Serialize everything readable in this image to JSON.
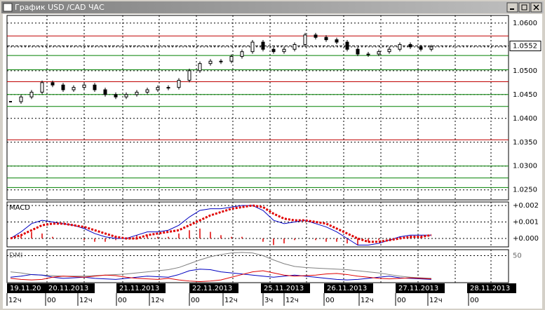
{
  "window": {
    "title": "График USD /CAD ЧАС"
  },
  "chart_data": [
    {
      "type": "candlestick",
      "values": [
        1.0435,
        1.0445,
        1.0455,
        1.0475,
        1.047,
        1.046,
        1.0465,
        1.047,
        1.046,
        1.045,
        1.0445,
        1.045,
        1.0455,
        1.046,
        1.0465,
        1.0465,
        1.048,
        1.05,
        1.0515,
        1.052,
        1.052,
        1.053,
        1.054,
        1.056,
        1.0545,
        1.054,
        1.0545,
        1.0555,
        1.0575,
        1.057,
        1.0565,
        1.056,
        1.0545,
        1.0535,
        1.0535,
        1.054,
        1.0545,
        1.0555,
        1.055,
        1.0545,
        1.055
      ],
      "color": "#000000",
      "current_price": 1.0552,
      "levels": [
        {
          "value": 1.0573,
          "color": "#c00000"
        },
        {
          "value": 1.0532,
          "color": "#008000"
        },
        {
          "value": 1.0502,
          "color": "#008000"
        },
        {
          "value": 1.0477,
          "color": "#c00000"
        },
        {
          "value": 1.045,
          "color": "#008000"
        },
        {
          "value": 1.0425,
          "color": "#008000"
        },
        {
          "value": 1.0355,
          "color": "#c00000"
        },
        {
          "value": 1.03,
          "color": "#008000"
        },
        {
          "value": 1.0275,
          "color": "#008000"
        },
        {
          "value": 1.0255,
          "color": "#008000"
        }
      ],
      "ylim": [
        1.0229,
        1.0616
      ],
      "yticks": [
        {
          "value": 1.06,
          "label": "1.0600"
        },
        {
          "value": 1.055,
          "label": "1.0550"
        },
        {
          "value": 1.05,
          "label": "1.0500"
        },
        {
          "value": 1.045,
          "label": "1.0450"
        },
        {
          "value": 1.04,
          "label": "1.0400"
        },
        {
          "value": 1.035,
          "label": "1.0350"
        },
        {
          "value": 1.03,
          "label": "1.0300"
        },
        {
          "value": 1.025,
          "label": "1.0250"
        }
      ],
      "grid": true
    },
    {
      "type": "line",
      "title": "MACD",
      "series": [
        {
          "color": "#0000c0",
          "values": [
            0,
            0.0004,
            0.0009,
            0.0011,
            0.001,
            0.0009,
            0.0008,
            0.0006,
            0.0003,
            0.0001,
            0,
            0,
            0.0002,
            0.0004,
            0.0004,
            0.0005,
            0.0008,
            0.0013,
            0.0017,
            0.0018,
            0.0018,
            0.0019,
            0.002,
            0.002,
            0.0017,
            0.0011,
            0.0009,
            0.001,
            0.0011,
            0.0009,
            0.0007,
            0.0004,
            0,
            -0.0004,
            -0.0004,
            -0.0003,
            -0.0001,
            0.0001,
            0.0002,
            0.0002,
            0.0002
          ]
        },
        {
          "color": "#e00000",
          "style": "dotted",
          "values": [
            0,
            0.0002,
            0.0005,
            0.0008,
            0.0009,
            0.0009,
            0.0008,
            0.0007,
            0.0005,
            0.0003,
            0.0001,
            0,
            0,
            0.0002,
            0.0003,
            0.0004,
            0.0005,
            0.0008,
            0.0011,
            0.0014,
            0.0016,
            0.0018,
            0.0019,
            0.002,
            0.0019,
            0.0015,
            0.0012,
            0.0011,
            0.0011,
            0.001,
            0.0009,
            0.0006,
            0.0003,
            0,
            -0.0002,
            -0.0002,
            -0.0001,
            0,
            0.0001,
            0.0001,
            0.0002
          ]
        }
      ],
      "histogram": {
        "color": "#e00000",
        "values": [
          0,
          0.0002,
          0.0004,
          0.0003,
          0.0001,
          0,
          0,
          -0.0001,
          -0.0002,
          -0.0002,
          -0.0001,
          0,
          0.0002,
          0.0002,
          0.0001,
          0.0001,
          0.0003,
          0.0005,
          0.0006,
          0.0004,
          0.0002,
          0.0001,
          0.0001,
          0,
          -0.0002,
          -0.0004,
          -0.0003,
          -0.0001,
          0,
          -0.0001,
          -0.0002,
          -0.0002,
          -0.0003,
          -0.0004,
          -0.0002,
          -0.0001,
          0,
          0.0001,
          0.0001,
          0.0001,
          0
        ]
      },
      "ylim": [
        -0.00051,
        0.00221
      ],
      "yticks": [
        {
          "value": 0.002,
          "label": "+0.002"
        },
        {
          "value": 0.001,
          "label": "+0.001"
        },
        {
          "value": 0,
          "label": "+0.000"
        }
      ]
    },
    {
      "type": "line",
      "title": "DMI",
      "series": [
        {
          "color": "#808080",
          "values": [
            20,
            18,
            15,
            14,
            13,
            12,
            12,
            12,
            13,
            14,
            15,
            16,
            18,
            20,
            22,
            24,
            28,
            35,
            42,
            48,
            52,
            55,
            56,
            55,
            50,
            42,
            35,
            30,
            28,
            27,
            26,
            25,
            24,
            22,
            20,
            18,
            15,
            12,
            10,
            9,
            8
          ]
        },
        {
          "color": "#0000c0",
          "values": [
            10,
            12,
            15,
            14,
            10,
            8,
            9,
            10,
            8,
            7,
            6,
            8,
            10,
            12,
            11,
            10,
            15,
            22,
            25,
            24,
            20,
            18,
            16,
            14,
            12,
            10,
            12,
            14,
            12,
            10,
            8,
            6,
            5,
            6,
            8,
            10,
            12,
            9,
            8,
            7,
            6
          ]
        },
        {
          "color": "#e00000",
          "values": [
            8,
            6,
            5,
            6,
            10,
            12,
            11,
            10,
            12,
            14,
            13,
            10,
            8,
            7,
            6,
            8,
            5,
            3,
            2,
            3,
            5,
            10,
            15,
            20,
            22,
            18,
            14,
            12,
            13,
            14,
            16,
            17,
            15,
            12,
            10,
            8,
            7,
            8,
            9,
            8,
            7
          ]
        }
      ],
      "ylim": [
        0,
        61
      ],
      "yticks": [
        50
      ]
    }
  ],
  "x_axis": {
    "dates": [
      "19.11.20",
      "20.11.2013",
      "21.11.2013",
      "22.11.2013",
      "25.11.2013",
      "26.11.2013",
      "27.11.2013",
      "28.11.2013"
    ],
    "hours": [
      "12ч",
      "00",
      "12ч",
      "00",
      "12ч",
      "00",
      "12ч",
      "3ч",
      "12ч",
      "00",
      "12ч",
      "00",
      "12ч",
      "00"
    ]
  }
}
